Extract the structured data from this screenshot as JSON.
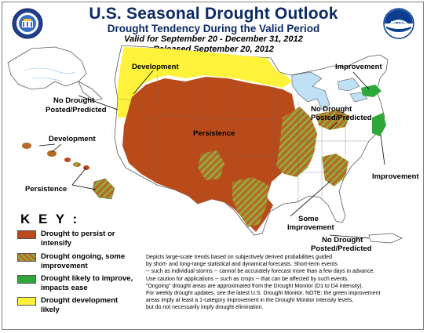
{
  "header": {
    "title": "U.S. Seasonal Drought Outlook",
    "subtitle": "Drought Tendency During the Valid Period",
    "valid": "Valid for September 20 - December 31, 2012",
    "released": "Released September 20, 2012"
  },
  "logos": {
    "left": "noaa-cpc-seal-icon",
    "right": "noaa-logo-icon",
    "right_text": "NOAA"
  },
  "colors": {
    "persist": "#b94a1a",
    "ongoing_base": "#b56a28",
    "ongoing_stripe": "#8fb23c",
    "improve": "#2fa83a",
    "develop": "#fff23a",
    "land": "#ffffff",
    "water": "#bfe0f5",
    "border": "#5a5a5a"
  },
  "map_labels": {
    "development_west": "Development",
    "improvement_ne": "Improvement",
    "no_drought_west_1": "No Drought",
    "no_drought_west_2": "Posted/Predicted",
    "persistence_center": "Persistence",
    "no_drought_se_1": "No Drought",
    "no_drought_se_2": "Posted/Predicted",
    "development_hi": "Development",
    "persistence_hi": "Persistence",
    "improvement_east": "Improvement",
    "some_improvement_1": "Some",
    "some_improvement_2": "Improvement",
    "no_drought_pr_1": "No Drought",
    "no_drought_pr_2": "Posted/Predicted"
  },
  "key": {
    "title": "K E Y :",
    "items": [
      {
        "label_1": "Drought to persist or",
        "label_2": "intensify",
        "swatch": "persist"
      },
      {
        "label_1": "Drought ongoing, some",
        "label_2": "improvement",
        "swatch": "ongoing"
      },
      {
        "label_1": "Drought likely to improve,",
        "label_2": "impacts ease",
        "swatch": "improve"
      },
      {
        "label_1": "Drought development",
        "label_2": "likely",
        "swatch": "develop"
      }
    ]
  },
  "notes": [
    "Depicts large-scale trends based on subjectively derived probabilities guided",
    "by short- and long-range statistical and dynamical forecasts. Short-term events",
    "-- such as individual storms -- cannot be accurately forecast more than a few days in advance.",
    "Use caution for applications -- such as crops -- that can be affected by such events.",
    "\"Ongoing\" drought areas are approximated from the Drought Monitor (D1 to D4 intensity).",
    "For weekly drought updates, see the latest U.S. Drought Monitor. NOTE: the green improvement",
    "areas imply at least a 1-category improvement in the Drought Monitor intensity levels,",
    "but do not necessarily imply drought elimination."
  ]
}
